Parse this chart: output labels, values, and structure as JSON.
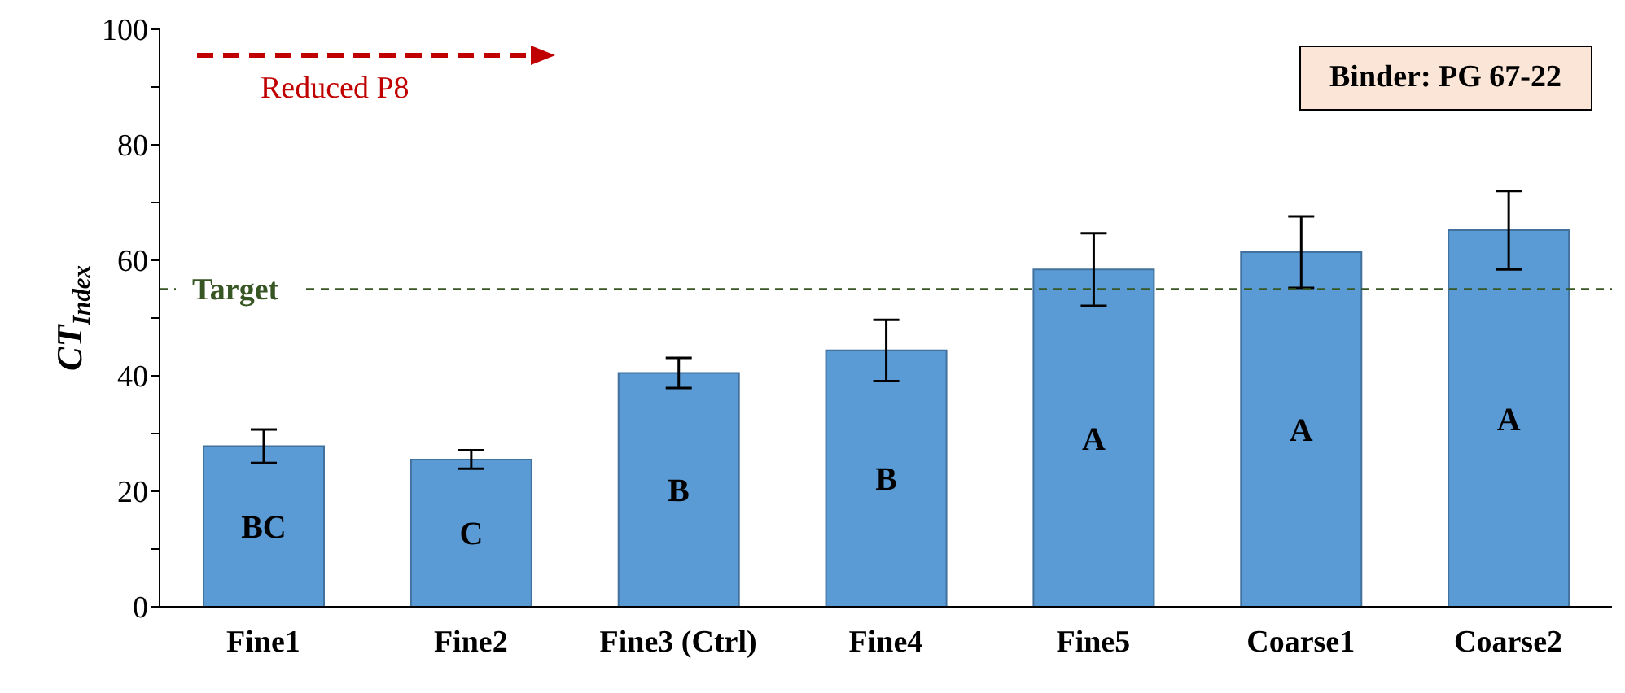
{
  "chart_data": {
    "type": "bar",
    "ylabel": "CT$_{Index}$",
    "categories": [
      "Fine1",
      "Fine2",
      "Fine3 (Ctrl)",
      "Fine4",
      "Fine5",
      "Coarse1",
      "Coarse2"
    ],
    "values": [
      27.8,
      25.5,
      40.5,
      44.4,
      58.4,
      61.4,
      65.2
    ],
    "errors": [
      2.9,
      1.6,
      2.6,
      5.3,
      6.3,
      6.2,
      6.8
    ],
    "color": "#5b9bd5",
    "ylim": [
      0,
      100
    ],
    "yticks": [
      0,
      {
        "value": 10,
        "label": null
      },
      20,
      {
        "value": 30,
        "label": null
      },
      40,
      {
        "value": 50,
        "label": null
      },
      60,
      {
        "value": 70,
        "label": null
      },
      80,
      {
        "value": 90,
        "label": null
      },
      100
    ],
    "grid": false,
    "legend": false,
    "ref_lines": [
      {
        "axis": "y",
        "value": 55,
        "label": "Target",
        "color": "#375623",
        "line_style": "dashed"
      }
    ],
    "annotations": [
      "Reduced P8",
      "Binder: PG 67-22",
      "BC",
      "C",
      "B",
      "B",
      "A",
      "A",
      "A"
    ]
  }
}
